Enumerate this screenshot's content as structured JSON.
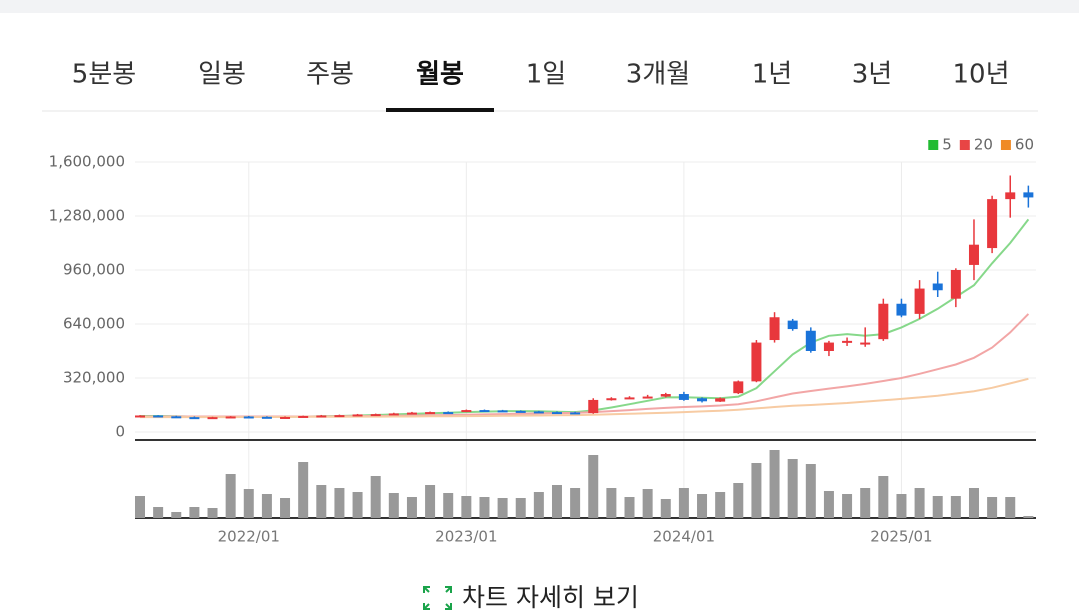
{
  "tabs": [
    "5분봉",
    "일봉",
    "주봉",
    "월봉",
    "1일",
    "3개월",
    "1년",
    "3년",
    "10년"
  ],
  "active_tab": 3,
  "chart_data": {
    "type": "candlestick",
    "categories": [
      null,
      null,
      null,
      null,
      null,
      null,
      "2022/01",
      null,
      null,
      null,
      null,
      null,
      null,
      null,
      null,
      null,
      null,
      null,
      "2023/01",
      null,
      null,
      null,
      null,
      null,
      null,
      null,
      null,
      null,
      null,
      null,
      "2024/01",
      null,
      null,
      null,
      null,
      null,
      null,
      null,
      null,
      null,
      null,
      null,
      "2025/01",
      null,
      null,
      null,
      null,
      null,
      null,
      null
    ],
    "open": [
      95000,
      98000,
      93000,
      88000,
      86000,
      88000,
      92000,
      90000,
      88000,
      89000,
      95000,
      98000,
      100000,
      104000,
      106000,
      110000,
      115000,
      118000,
      120000,
      130000,
      128000,
      125000,
      122000,
      118000,
      116000,
      112000,
      190000,
      200000,
      205000,
      210000,
      225000,
      200000,
      180000,
      230000,
      300000,
      545000,
      660000,
      600000,
      480000,
      530000,
      520000,
      550000,
      760000,
      700000,
      880000,
      790000,
      990000,
      1090000,
      1380000,
      1420000
    ],
    "high": [
      100000,
      100000,
      96000,
      92000,
      90000,
      94000,
      95000,
      93000,
      92000,
      97000,
      101000,
      103000,
      107000,
      109000,
      114000,
      119000,
      121000,
      122000,
      133000,
      133000,
      131000,
      128000,
      125000,
      122000,
      120000,
      200000,
      206000,
      212000,
      220000,
      232000,
      238000,
      205000,
      205000,
      305000,
      545000,
      710000,
      670000,
      620000,
      540000,
      560000,
      620000,
      790000,
      790000,
      900000,
      950000,
      970000,
      1260000,
      1400000,
      1520000,
      1460000
    ],
    "low": [
      92000,
      91000,
      86000,
      84000,
      84000,
      86000,
      88000,
      86000,
      86000,
      87000,
      93000,
      96000,
      98000,
      101000,
      104000,
      108000,
      112000,
      114000,
      118000,
      125000,
      122000,
      119000,
      116000,
      113000,
      110000,
      108000,
      186000,
      196000,
      200000,
      205000,
      185000,
      175000,
      178000,
      225000,
      295000,
      530000,
      600000,
      470000,
      450000,
      510000,
      505000,
      540000,
      680000,
      670000,
      800000,
      740000,
      900000,
      1060000,
      1270000,
      1330000
    ],
    "close": [
      98000,
      93000,
      88000,
      86000,
      88000,
      92000,
      90000,
      88000,
      89000,
      95000,
      98000,
      100000,
      104000,
      106000,
      110000,
      115000,
      118000,
      116000,
      130000,
      128000,
      125000,
      122000,
      118000,
      116000,
      112000,
      190000,
      200000,
      205000,
      210000,
      225000,
      190000,
      182000,
      200000,
      300000,
      530000,
      680000,
      610000,
      480000,
      530000,
      540000,
      530000,
      760000,
      690000,
      850000,
      840000,
      960000,
      1110000,
      1380000,
      1420000,
      1390000
    ],
    "up_color": "#e8373c",
    "down_color": "#1a73d9",
    "ma_series": [
      {
        "name": "5",
        "color": "#22bb33",
        "line_color": "#86d88a",
        "values": [
          95000,
          95000,
          93000,
          91000,
          90000,
          90000,
          90000,
          90000,
          90000,
          91000,
          93000,
          95000,
          98000,
          101000,
          104000,
          107000,
          111000,
          114000,
          118000,
          121000,
          123000,
          124000,
          123000,
          120000,
          118000,
          128000,
          145000,
          165000,
          185000,
          205000,
          206000,
          203000,
          200000,
          210000,
          260000,
          360000,
          460000,
          530000,
          570000,
          580000,
          570000,
          580000,
          620000,
          670000,
          730000,
          800000,
          870000,
          1000000,
          1120000,
          1260000
        ]
      },
      {
        "name": "20",
        "color": "#e84545",
        "line_color": "#f2a6a6",
        "values": [
          92000,
          92000,
          92000,
          92000,
          92000,
          92000,
          92000,
          92000,
          92000,
          92000,
          92000,
          93000,
          94000,
          95000,
          96000,
          97000,
          99000,
          100000,
          102000,
          104000,
          106000,
          108000,
          110000,
          112000,
          113000,
          118000,
          124000,
          130000,
          137000,
          143000,
          148000,
          152000,
          157000,
          165000,
          182000,
          205000,
          228000,
          243000,
          257000,
          270000,
          285000,
          302000,
          320000,
          345000,
          372000,
          400000,
          440000,
          500000,
          590000,
          700000
        ]
      },
      {
        "name": "60",
        "color": "#f08a24",
        "line_color": "#f7cba3",
        "values": [
          88000,
          88000,
          88000,
          88000,
          88000,
          88000,
          89000,
          89000,
          89000,
          90000,
          90000,
          90000,
          91000,
          91000,
          92000,
          92000,
          93000,
          93000,
          94000,
          95000,
          96000,
          97000,
          98000,
          99000,
          100000,
          102000,
          105000,
          108000,
          111000,
          114000,
          118000,
          122000,
          126000,
          132000,
          140000,
          148000,
          155000,
          160000,
          166000,
          172000,
          180000,
          188000,
          196000,
          205000,
          215000,
          228000,
          242000,
          262000,
          288000,
          315000
        ]
      }
    ],
    "volumes": [
      22,
      11,
      6,
      11,
      10,
      44,
      29,
      24,
      20,
      56,
      33,
      30,
      26,
      42,
      25,
      21,
      33,
      25,
      22,
      21,
      20,
      20,
      26,
      33,
      30,
      63,
      30,
      21,
      29,
      19,
      30,
      24,
      26,
      35,
      55,
      68,
      59,
      54,
      27,
      24,
      30,
      42,
      24,
      30,
      22,
      22,
      30,
      21,
      21,
      2
    ],
    "volume_color": "#999999",
    "ylim": [
      0,
      1600000
    ],
    "yticks": [
      {
        "value": 0,
        "label": "0"
      },
      {
        "value": 320000,
        "label": "320,000"
      },
      {
        "value": 640000,
        "label": "640,000"
      },
      {
        "value": 960000,
        "label": "960,000"
      },
      {
        "value": 1280000,
        "label": "1,280,000"
      },
      {
        "value": 1600000,
        "label": "1,600,000"
      }
    ],
    "grid": true
  },
  "footer_link": "차트 자세히 보기"
}
